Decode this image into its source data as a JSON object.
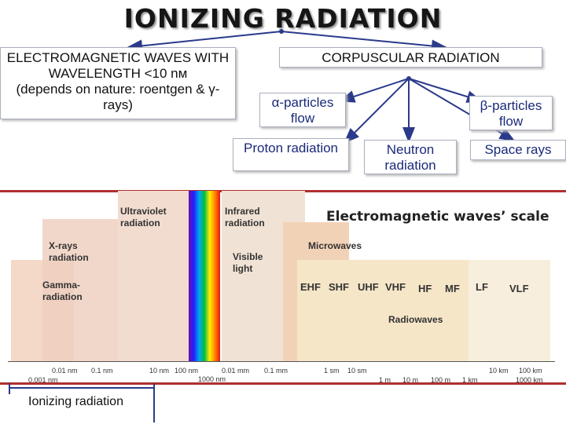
{
  "title": "IONIZING RADIATION",
  "left_box": {
    "line1": "ELECTROMAGNETIC WAVES WITH",
    "line2": "WAVELENGTH <10 nм",
    "line3": "(depends on nature: roentgen & γ-",
    "line4": "rays)"
  },
  "corpuscular": "CORPUSCULAR RADIATION",
  "alpha": {
    "line1": "α-particles",
    "line2": "flow"
  },
  "beta": {
    "line1": "β-particles",
    "line2": "flow"
  },
  "proton": "Proton radiation",
  "neutron": {
    "line1": "Neutron",
    "line2": "radiation"
  },
  "space": "Space rays",
  "scale": {
    "title": "Electromagnetic waves’ scale",
    "ultraviolet": [
      "Ultraviolet",
      "radiation"
    ],
    "infrared": [
      "Infrared",
      "radiation"
    ],
    "xrays": [
      "X-rays",
      "radiation"
    ],
    "visible": [
      "Visible",
      "light"
    ],
    "microwaves": "Microwaves",
    "gamma": [
      "Gamma-",
      "radiation"
    ],
    "bands": [
      "EHF",
      "SHF",
      "UHF",
      "VHF",
      "HF",
      "MF",
      "LF",
      "VLF"
    ],
    "radiowaves": "Radiowaves",
    "ticks_top": [
      "0.01 nm",
      "0.1 nm",
      "10 nm",
      "100 nm",
      "0.01 mm",
      "0.1 mm",
      "1 sm",
      "10 sm",
      "10 km",
      "100 km"
    ],
    "ticks_bottom": [
      "0.001 nm",
      "1000 nm",
      "1 m",
      "10 m",
      "100 m",
      "1 km",
      "1000 km"
    ]
  },
  "ionizing_label": "Ionizing radiation",
  "colors": {
    "frame": "#b03030",
    "rainbow": [
      "#6a0dad",
      "#2222ff",
      "#00aaee",
      "#00bb44",
      "#ffee00",
      "#ff8800",
      "#ee1111"
    ]
  }
}
